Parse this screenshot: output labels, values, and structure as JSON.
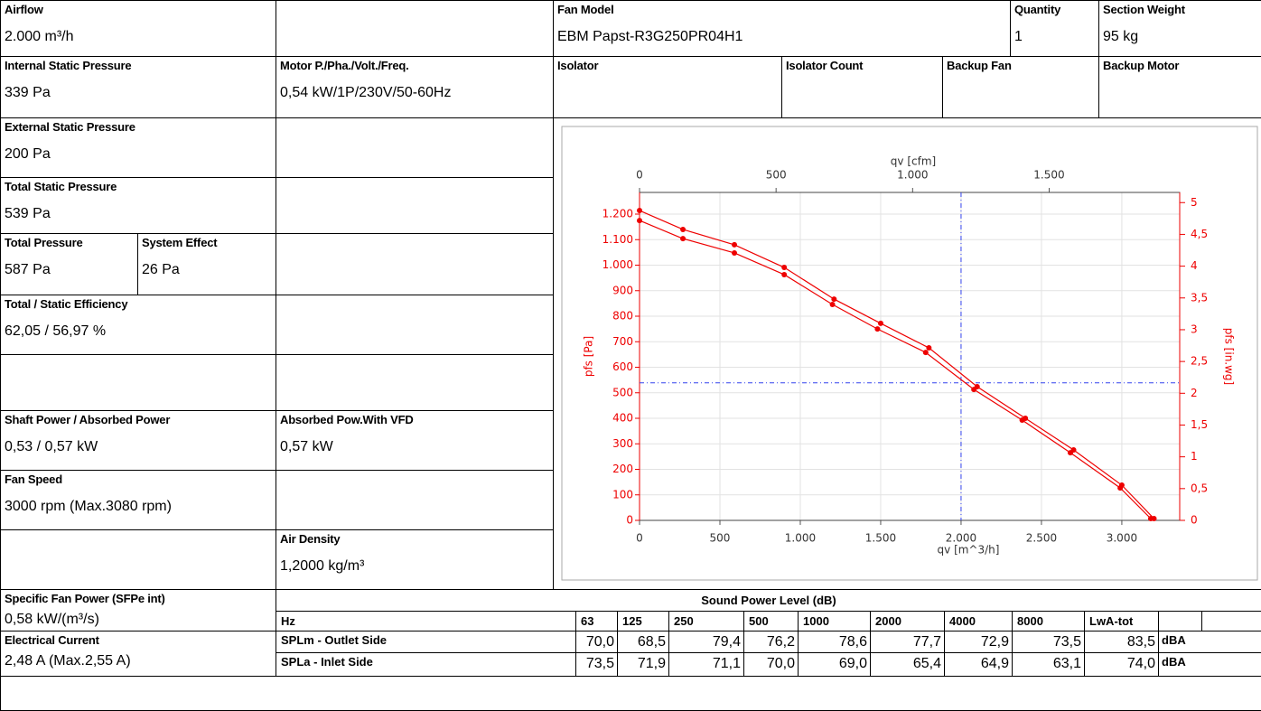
{
  "fields": {
    "airflow": {
      "label": "Airflow",
      "value": "2.000 m³/h"
    },
    "fan_model": {
      "label": "Fan Model",
      "value": "EBM Papst-R3G250PR04H1"
    },
    "quantity": {
      "label": "Quantity",
      "value": "1"
    },
    "section_weight": {
      "label": "Section Weight",
      "value": "95 kg"
    },
    "internal_static": {
      "label": "Internal Static Pressure",
      "value": "339 Pa"
    },
    "motor": {
      "label": "Motor P./Pha./Volt./Freq.",
      "value": "0,54 kW/1P/230V/50-60Hz"
    },
    "isolator": {
      "label": "Isolator"
    },
    "isolator_count": {
      "label": "Isolator Count"
    },
    "backup_fan": {
      "label": "Backup Fan"
    },
    "backup_motor": {
      "label": "Backup Motor"
    },
    "external_static": {
      "label": "External Static Pressure",
      "value": "200 Pa"
    },
    "total_static": {
      "label": "Total Static Pressure",
      "value": "539 Pa"
    },
    "total_pressure": {
      "label": "Total Pressure",
      "value": "587 Pa"
    },
    "system_effect": {
      "label": "System Effect",
      "value": "26 Pa"
    },
    "efficiency": {
      "label": "Total / Static Efficiency",
      "value": "62,05 / 56,97 %"
    },
    "shaft_power": {
      "label": "Shaft Power / Absorbed Power",
      "value": "0,53 / 0,57 kW"
    },
    "vfd_power": {
      "label": "Absorbed Pow.With VFD",
      "value": "0,57 kW"
    },
    "fan_speed": {
      "label": "Fan Speed",
      "value": "3000 rpm (Max.3080 rpm)"
    },
    "air_density": {
      "label": "Air Density",
      "value": "1,2000 kg/m³"
    },
    "sfp": {
      "label": "Specific Fan Power (SFPe int)",
      "value": "0,58 kW/(m³/s)"
    },
    "current": {
      "label": "Electrical Current",
      "value": "2,48 A (Max.2,55 A)"
    }
  },
  "sound": {
    "title": "Sound Power Level (dB)",
    "header": [
      "Hz",
      "63",
      "125",
      "250",
      "500",
      "1000",
      "2000",
      "4000",
      "8000",
      "LwA-tot"
    ],
    "rows": [
      {
        "label": "SPLm - Outlet Side",
        "values": [
          "70,0",
          "68,5",
          "79,4",
          "76,2",
          "78,6",
          "77,7",
          "72,9",
          "73,5",
          "83,5"
        ],
        "unit": "dBA"
      },
      {
        "label": "SPLa - Inlet Side",
        "values": [
          "73,5",
          "71,9",
          "71,1",
          "70,0",
          "69,0",
          "65,4",
          "64,9",
          "63,1",
          "74,0"
        ],
        "unit": "dBA"
      }
    ]
  },
  "chart_data": {
    "type": "line",
    "x_label": "qv [m^3/h]",
    "x2_label": "qv [cfm]",
    "y_label": "pfs [Pa]",
    "y2_label": "pfs [in.wg]",
    "xlim": [
      0,
      3360
    ],
    "xticks": [
      0,
      500,
      {
        "value": 1000,
        "label": "1.000"
      },
      {
        "value": 1500,
        "label": "1.500"
      },
      {
        "value": 2000,
        "label": "2.000"
      },
      {
        "value": 2500,
        "label": "2.500"
      },
      {
        "value": 3000,
        "label": "3.000"
      }
    ],
    "x2lim": [
      0,
      1978
    ],
    "x2ticks": [
      0,
      500,
      {
        "value": 1000,
        "label": "1.000"
      },
      {
        "value": 1500,
        "label": "1.500"
      }
    ],
    "ylim": [
      0,
      1285
    ],
    "yticks": [
      0,
      100,
      200,
      300,
      400,
      500,
      600,
      700,
      800,
      900,
      {
        "value": 1000,
        "label": "1.000"
      },
      {
        "value": 1100,
        "label": "1.100"
      },
      {
        "value": 1200,
        "label": "1.200"
      }
    ],
    "y2lim": [
      0,
      5.16
    ],
    "y2ticks": [
      0,
      {
        "value": 0.5,
        "label": "0,5"
      },
      1,
      {
        "value": 1.5,
        "label": "1,5"
      },
      2,
      {
        "value": 2.5,
        "label": "2,5"
      },
      3,
      {
        "value": 3.5,
        "label": "3,5"
      },
      4,
      {
        "value": 4.5,
        "label": "4,5"
      },
      5
    ],
    "grid": true,
    "axis_color": "#ee0000",
    "reference_color": "#3344ee",
    "reference_x": 2000,
    "reference_y": 539,
    "series": [
      {
        "color": "#ee0000",
        "x": [
          0,
          270,
          590,
          900,
          1210,
          1500,
          1800,
          2100,
          2400,
          2700,
          3000,
          3200
        ],
        "values": [
          1214,
          1140,
          1080,
          991,
          867,
          772,
          676,
          524,
          400,
          276,
          138,
          7
        ]
      },
      {
        "color": "#ee0000",
        "x": [
          0,
          270,
          590,
          900,
          1200,
          1480,
          1780,
          2080,
          2380,
          2680,
          2990,
          3180
        ],
        "values": [
          1175,
          1104,
          1048,
          963,
          846,
          750,
          658,
          513,
          393,
          265,
          127,
          7
        ]
      }
    ]
  }
}
